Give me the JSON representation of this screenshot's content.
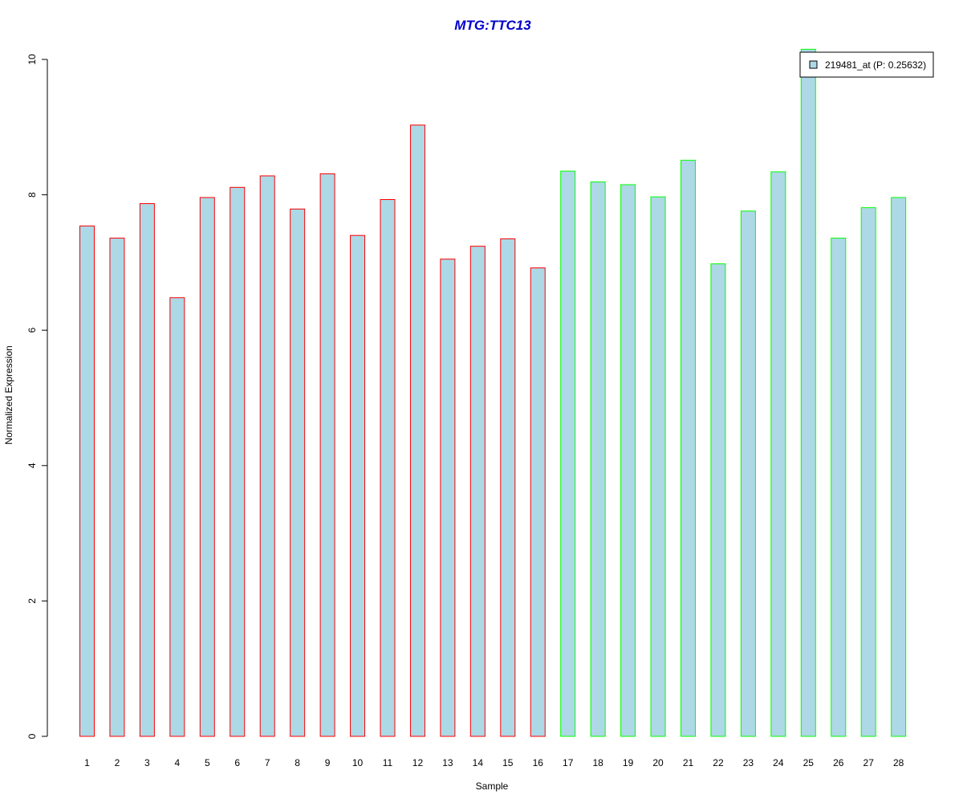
{
  "chart_data": {
    "type": "bar",
    "title": "MTG:TTC13",
    "xlabel": "Sample",
    "ylabel": "Normalized Expression",
    "ylim": [
      0,
      10
    ],
    "yticks": [
      "0",
      "2",
      "4",
      "6",
      "8",
      "10"
    ],
    "categories": [
      "1",
      "2",
      "3",
      "4",
      "5",
      "6",
      "7",
      "8",
      "9",
      "10",
      "11",
      "12",
      "13",
      "14",
      "15",
      "16",
      "17",
      "18",
      "19",
      "20",
      "21",
      "22",
      "23",
      "24",
      "25",
      "26",
      "27",
      "28"
    ],
    "series": [
      {
        "name": "219481_at (P: 0.25632)",
        "values": [
          7.54,
          7.36,
          7.87,
          6.48,
          7.96,
          8.11,
          8.28,
          7.79,
          8.31,
          7.4,
          7.93,
          9.03,
          7.05,
          7.24,
          7.35,
          6.92,
          8.35,
          8.19,
          8.15,
          7.97,
          8.51,
          6.98,
          7.76,
          8.34,
          10.15,
          7.36,
          7.81,
          7.96
        ],
        "groups": [
          "red",
          "red",
          "red",
          "red",
          "red",
          "red",
          "red",
          "red",
          "red",
          "red",
          "red",
          "red",
          "red",
          "red",
          "red",
          "red",
          "green",
          "green",
          "green",
          "green",
          "green",
          "green",
          "green",
          "green",
          "green",
          "green",
          "green",
          "green"
        ]
      }
    ],
    "legend": {
      "position": "top-right",
      "label": "219481_at (P: 0.25632)"
    },
    "grid": false,
    "colors": {
      "bar_fill": "#add8e6",
      "group_red": "#ff0000",
      "group_green": "#00ff00",
      "title": "#0000cd",
      "axis": "#000000"
    }
  }
}
